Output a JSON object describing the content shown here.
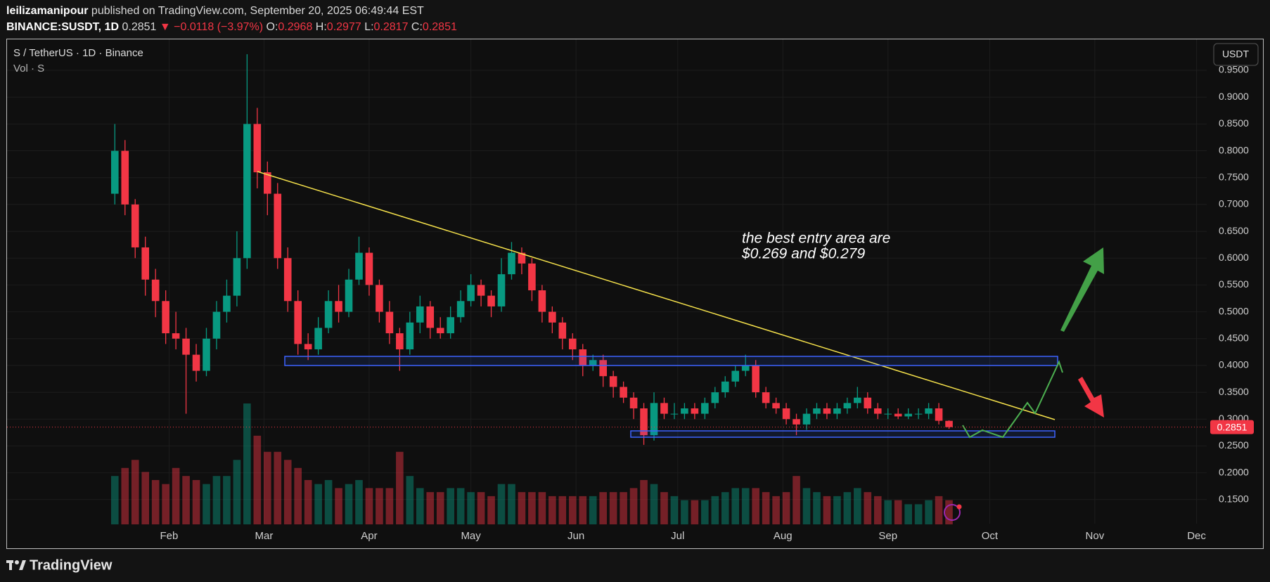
{
  "header": {
    "author": "leilizamanipour",
    "published": "published on TradingView.com, September 20, 2025 06:49:44 EST",
    "symbol": "BINANCE:SUSDT, 1D",
    "change": "−0.0118 (−3.97%)",
    "o_label": "O:",
    "h_label": "H:",
    "l_label": "L:",
    "c_label": "C:"
  },
  "footer": {
    "brand": "TradingView"
  },
  "chart_data": {
    "type": "candlestick",
    "title": "S / TetherUS · 1D · Binance",
    "volume_label": "Vol · S",
    "currency": "USDT",
    "annotations": [
      "the best entry area are",
      "$0.269 and $0.279"
    ],
    "up_color": "#089981",
    "down_color": "#f23645",
    "grid": true,
    "xlim": [
      -16,
      338
    ],
    "ylim": [
      0.058,
      1.009
    ],
    "xticks": [
      {
        "value": 32,
        "label": "Feb"
      },
      {
        "value": 60,
        "label": "Mar"
      },
      {
        "value": 91,
        "label": "Apr"
      },
      {
        "value": 121,
        "label": "May"
      },
      {
        "value": 152,
        "label": "Jun"
      },
      {
        "value": 182,
        "label": "Jul"
      },
      {
        "value": 213,
        "label": "Aug"
      },
      {
        "value": 244,
        "label": "Sep"
      },
      {
        "value": 274,
        "label": "Oct"
      },
      {
        "value": 305,
        "label": "Nov"
      },
      {
        "value": 335,
        "label": "Dec"
      }
    ],
    "yticks": [
      {
        "value": 0.15,
        "label": "0.1500"
      },
      {
        "value": 0.2,
        "label": "0.2000"
      },
      {
        "value": 0.25,
        "label": "0.2500"
      },
      {
        "value": 0.3,
        "label": "0.3000"
      },
      {
        "value": 0.35,
        "label": "0.3500"
      },
      {
        "value": 0.4,
        "label": "0.4000"
      },
      {
        "value": 0.45,
        "label": "0.4500"
      },
      {
        "value": 0.5,
        "label": "0.5000"
      },
      {
        "value": 0.55,
        "label": "0.5500"
      },
      {
        "value": 0.6,
        "label": "0.6000"
      },
      {
        "value": 0.65,
        "label": "0.6500"
      },
      {
        "value": 0.7,
        "label": "0.7000"
      },
      {
        "value": 0.75,
        "label": "0.7500"
      },
      {
        "value": 0.8,
        "label": "0.8000"
      },
      {
        "value": 0.85,
        "label": "0.8500"
      },
      {
        "value": 0.9,
        "label": "0.9000"
      },
      {
        "value": 0.95,
        "label": "0.9500"
      }
    ],
    "x": [
      16,
      19,
      22,
      25,
      28,
      31,
      34,
      37,
      40,
      43,
      46,
      49,
      52,
      55,
      58,
      61,
      64,
      67,
      70,
      73,
      76,
      79,
      82,
      85,
      88,
      91,
      94,
      97,
      100,
      103,
      106,
      109,
      112,
      115,
      118,
      121,
      124,
      127,
      130,
      133,
      136,
      139,
      142,
      145,
      148,
      151,
      154,
      157,
      160,
      163,
      166,
      169,
      172,
      175,
      178,
      181,
      184,
      187,
      190,
      193,
      196,
      199,
      202,
      205,
      208,
      211,
      214,
      217,
      220,
      223,
      226,
      229,
      232,
      235,
      238,
      241,
      244,
      247,
      250,
      253,
      256,
      259,
      262
    ],
    "open": [
      0.72,
      0.8,
      0.7,
      0.62,
      0.56,
      0.52,
      0.46,
      0.45,
      0.42,
      0.39,
      0.45,
      0.5,
      0.53,
      0.6,
      0.85,
      0.76,
      0.72,
      0.6,
      0.52,
      0.44,
      0.43,
      0.47,
      0.52,
      0.5,
      0.56,
      0.61,
      0.55,
      0.5,
      0.46,
      0.43,
      0.48,
      0.51,
      0.47,
      0.46,
      0.49,
      0.52,
      0.55,
      0.53,
      0.51,
      0.57,
      0.61,
      0.59,
      0.54,
      0.5,
      0.48,
      0.45,
      0.43,
      0.4,
      0.41,
      0.38,
      0.36,
      0.34,
      0.32,
      0.27,
      0.33,
      0.31,
      0.31,
      0.32,
      0.31,
      0.33,
      0.35,
      0.37,
      0.39,
      0.4,
      0.35,
      0.33,
      0.32,
      0.3,
      0.29,
      0.31,
      0.32,
      0.31,
      0.32,
      0.33,
      0.34,
      0.32,
      0.31,
      0.31,
      0.305,
      0.31,
      0.31,
      0.32,
      0.2968
    ],
    "high": [
      0.85,
      0.82,
      0.71,
      0.64,
      0.58,
      0.54,
      0.5,
      0.47,
      0.44,
      0.47,
      0.52,
      0.56,
      0.65,
      0.98,
      0.88,
      0.78,
      0.74,
      0.62,
      0.54,
      0.46,
      0.49,
      0.54,
      0.55,
      0.58,
      0.64,
      0.62,
      0.56,
      0.52,
      0.47,
      0.5,
      0.53,
      0.52,
      0.49,
      0.51,
      0.54,
      0.57,
      0.56,
      0.54,
      0.6,
      0.63,
      0.62,
      0.6,
      0.55,
      0.51,
      0.49,
      0.46,
      0.44,
      0.42,
      0.42,
      0.39,
      0.37,
      0.35,
      0.33,
      0.35,
      0.34,
      0.33,
      0.33,
      0.33,
      0.34,
      0.36,
      0.38,
      0.4,
      0.42,
      0.41,
      0.36,
      0.34,
      0.33,
      0.31,
      0.32,
      0.33,
      0.33,
      0.33,
      0.34,
      0.36,
      0.35,
      0.33,
      0.32,
      0.32,
      0.32,
      0.32,
      0.33,
      0.33,
      0.2977
    ],
    "low": [
      0.7,
      0.68,
      0.6,
      0.53,
      0.49,
      0.44,
      0.43,
      0.31,
      0.37,
      0.38,
      0.43,
      0.48,
      0.51,
      0.58,
      0.73,
      0.68,
      0.58,
      0.5,
      0.42,
      0.41,
      0.42,
      0.46,
      0.48,
      0.49,
      0.55,
      0.53,
      0.48,
      0.44,
      0.39,
      0.42,
      0.46,
      0.45,
      0.45,
      0.45,
      0.48,
      0.51,
      0.51,
      0.49,
      0.5,
      0.56,
      0.57,
      0.52,
      0.48,
      0.46,
      0.43,
      0.41,
      0.38,
      0.39,
      0.36,
      0.34,
      0.33,
      0.3,
      0.252,
      0.26,
      0.3,
      0.3,
      0.3,
      0.3,
      0.3,
      0.32,
      0.34,
      0.36,
      0.38,
      0.34,
      0.32,
      0.31,
      0.29,
      0.27,
      0.28,
      0.3,
      0.3,
      0.3,
      0.31,
      0.32,
      0.31,
      0.3,
      0.3,
      0.3,
      0.3,
      0.3,
      0.3,
      0.29,
      0.2817
    ],
    "close": [
      0.8,
      0.7,
      0.62,
      0.56,
      0.52,
      0.46,
      0.45,
      0.42,
      0.39,
      0.45,
      0.5,
      0.53,
      0.6,
      0.85,
      0.76,
      0.72,
      0.6,
      0.52,
      0.44,
      0.43,
      0.47,
      0.52,
      0.5,
      0.56,
      0.61,
      0.55,
      0.5,
      0.46,
      0.43,
      0.48,
      0.51,
      0.47,
      0.46,
      0.49,
      0.52,
      0.55,
      0.53,
      0.51,
      0.57,
      0.61,
      0.59,
      0.54,
      0.5,
      0.48,
      0.45,
      0.43,
      0.4,
      0.41,
      0.38,
      0.36,
      0.34,
      0.32,
      0.27,
      0.33,
      0.31,
      0.31,
      0.32,
      0.31,
      0.33,
      0.35,
      0.37,
      0.39,
      0.4,
      0.35,
      0.33,
      0.32,
      0.3,
      0.29,
      0.31,
      0.32,
      0.31,
      0.32,
      0.33,
      0.34,
      0.32,
      0.31,
      0.31,
      0.305,
      0.31,
      0.31,
      0.32,
      0.2969,
      0.2851
    ],
    "volume": [
      60,
      70,
      80,
      65,
      55,
      50,
      70,
      60,
      55,
      50,
      60,
      60,
      80,
      150,
      110,
      90,
      90,
      80,
      70,
      55,
      50,
      55,
      45,
      50,
      55,
      45,
      45,
      45,
      90,
      60,
      45,
      40,
      40,
      45,
      45,
      40,
      40,
      35,
      50,
      50,
      40,
      40,
      40,
      35,
      35,
      35,
      35,
      35,
      40,
      40,
      40,
      45,
      55,
      50,
      40,
      35,
      30,
      30,
      30,
      35,
      40,
      45,
      45,
      45,
      40,
      35,
      40,
      60,
      45,
      40,
      35,
      35,
      40,
      45,
      40,
      35,
      30,
      30,
      25,
      25,
      30,
      35,
      30
    ]
  }
}
